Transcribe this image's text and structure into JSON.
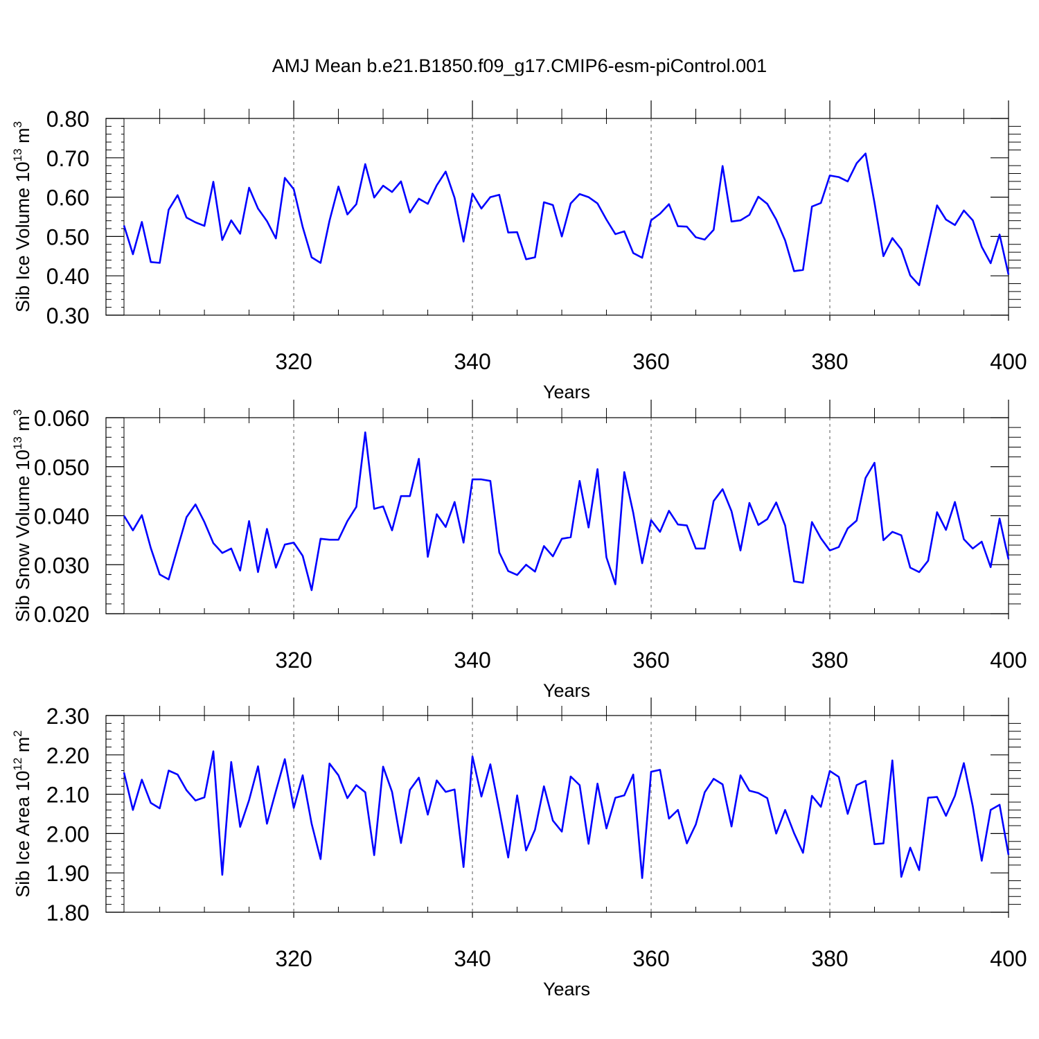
{
  "title": "AMJ Mean b.e21.B1850.f09_g17.CMIP6-esm-piControl.001",
  "chart_data": [
    {
      "type": "line",
      "name": "sib-ice-volume",
      "ylabel_main": "Sib Ice Volume 10",
      "ylabel_exp": "13",
      "ylabel_unit": " m",
      "ylabel_unit_exp": "3",
      "xlabel": "Years",
      "xlim": [
        301,
        400
      ],
      "ylim": [
        0.3,
        0.8
      ],
      "yticks": [
        0.3,
        0.4,
        0.5,
        0.6,
        0.7,
        0.8
      ],
      "ytick_labels": [
        "0.30",
        "0.40",
        "0.50",
        "0.60",
        "0.70",
        "0.80"
      ],
      "xticks": [
        320,
        340,
        360,
        380,
        400
      ],
      "xtick_labels": [
        "320",
        "340",
        "360",
        "380",
        "400"
      ],
      "line_color": "#0000ff",
      "x_start": 301,
      "values": [
        0.528,
        0.455,
        0.537,
        0.435,
        0.433,
        0.568,
        0.605,
        0.548,
        0.536,
        0.527,
        0.639,
        0.491,
        0.541,
        0.507,
        0.624,
        0.571,
        0.539,
        0.495,
        0.649,
        0.62,
        0.524,
        0.447,
        0.433,
        0.54,
        0.627,
        0.556,
        0.582,
        0.684,
        0.599,
        0.629,
        0.613,
        0.64,
        0.561,
        0.596,
        0.583,
        0.63,
        0.665,
        0.598,
        0.487,
        0.609,
        0.571,
        0.6,
        0.606,
        0.51,
        0.511,
        0.442,
        0.447,
        0.587,
        0.58,
        0.5,
        0.584,
        0.608,
        0.6,
        0.584,
        0.543,
        0.506,
        0.513,
        0.458,
        0.446,
        0.541,
        0.558,
        0.582,
        0.526,
        0.525,
        0.498,
        0.492,
        0.517,
        0.679,
        0.538,
        0.541,
        0.555,
        0.601,
        0.583,
        0.543,
        0.49,
        0.412,
        0.415,
        0.576,
        0.585,
        0.655,
        0.651,
        0.64,
        0.686,
        0.711,
        0.586,
        0.45,
        0.496,
        0.467,
        0.401,
        0.376,
        0.478,
        0.579,
        0.543,
        0.529,
        0.566,
        0.541,
        0.474,
        0.432,
        0.505,
        0.403
      ]
    },
    {
      "type": "line",
      "name": "sib-snow-volume",
      "ylabel_main": "Sib Snow Volume 10",
      "ylabel_exp": "13",
      "ylabel_unit": " m",
      "ylabel_unit_exp": "3",
      "xlabel": "Years",
      "xlim": [
        301,
        400
      ],
      "ylim": [
        0.02,
        0.06
      ],
      "yticks": [
        0.02,
        0.03,
        0.04,
        0.05,
        0.06
      ],
      "ytick_labels": [
        "0.020",
        "0.030",
        "0.040",
        "0.050",
        "0.060"
      ],
      "xticks": [
        320,
        340,
        360,
        380,
        400
      ],
      "xtick_labels": [
        "320",
        "340",
        "360",
        "380",
        "400"
      ],
      "line_color": "#0000ff",
      "x_start": 301,
      "values": [
        0.04,
        0.037,
        0.0401,
        0.0334,
        0.028,
        0.027,
        0.0334,
        0.0397,
        0.0423,
        0.0387,
        0.0344,
        0.0324,
        0.0333,
        0.0288,
        0.0389,
        0.0285,
        0.0373,
        0.0294,
        0.0341,
        0.0345,
        0.0318,
        0.0248,
        0.0353,
        0.0351,
        0.0351,
        0.0389,
        0.0418,
        0.057,
        0.0414,
        0.0419,
        0.037,
        0.044,
        0.044,
        0.0516,
        0.0316,
        0.0403,
        0.0377,
        0.0428,
        0.0345,
        0.0474,
        0.0474,
        0.0471,
        0.0325,
        0.0287,
        0.0279,
        0.03,
        0.0286,
        0.0338,
        0.0317,
        0.0353,
        0.0356,
        0.0471,
        0.0376,
        0.0495,
        0.0315,
        0.026,
        0.0489,
        0.0406,
        0.0303,
        0.0391,
        0.0367,
        0.041,
        0.0382,
        0.038,
        0.0333,
        0.0333,
        0.043,
        0.0454,
        0.0409,
        0.0329,
        0.0426,
        0.0381,
        0.0393,
        0.0427,
        0.038,
        0.0266,
        0.0263,
        0.0387,
        0.0354,
        0.0329,
        0.0336,
        0.0374,
        0.039,
        0.0477,
        0.0508,
        0.035,
        0.0367,
        0.036,
        0.0294,
        0.0285,
        0.0308,
        0.0407,
        0.0371,
        0.0428,
        0.0352,
        0.0333,
        0.0347,
        0.0295,
        0.0394,
        0.0311
      ]
    },
    {
      "type": "line",
      "name": "sib-ice-area",
      "ylabel_main": "Sib Ice Area 10",
      "ylabel_exp": "12",
      "ylabel_unit": " m",
      "ylabel_unit_exp": "2",
      "xlabel": "Years",
      "xlim": [
        301,
        400
      ],
      "ylim": [
        1.8,
        2.3
      ],
      "yticks": [
        1.8,
        1.9,
        2.0,
        2.1,
        2.2,
        2.3
      ],
      "ytick_labels": [
        "1.80",
        "1.90",
        "2.00",
        "2.10",
        "2.20",
        "2.30"
      ],
      "xticks": [
        320,
        340,
        360,
        380,
        400
      ],
      "xtick_labels": [
        "320",
        "340",
        "360",
        "380",
        "400"
      ],
      "line_color": "#0000ff",
      "x_start": 301,
      "values": [
        2.155,
        2.06,
        2.137,
        2.078,
        2.064,
        2.16,
        2.15,
        2.11,
        2.084,
        2.092,
        2.209,
        1.895,
        2.182,
        2.017,
        2.085,
        2.171,
        2.025,
        2.108,
        2.189,
        2.065,
        2.148,
        2.025,
        1.935,
        2.178,
        2.148,
        2.09,
        2.123,
        2.105,
        1.945,
        2.17,
        2.106,
        1.976,
        2.111,
        2.142,
        2.048,
        2.135,
        2.106,
        2.112,
        1.915,
        2.196,
        2.094,
        2.176,
        2.06,
        1.939,
        2.097,
        1.957,
        2.01,
        2.12,
        2.033,
        2.005,
        2.145,
        2.123,
        1.974,
        2.127,
        2.013,
        2.091,
        2.097,
        2.15,
        1.887,
        2.157,
        2.162,
        2.038,
        2.06,
        1.975,
        2.023,
        2.105,
        2.139,
        2.125,
        2.018,
        2.148,
        2.109,
        2.103,
        2.09,
        2.0,
        2.06,
        2.001,
        1.951,
        2.096,
        2.068,
        2.159,
        2.144,
        2.05,
        2.123,
        2.134,
        1.973,
        1.975,
        2.186,
        1.89,
        1.964,
        1.907,
        2.091,
        2.093,
        2.045,
        2.096,
        2.179,
        2.069,
        1.931,
        2.06,
        2.073,
        1.946
      ]
    }
  ]
}
